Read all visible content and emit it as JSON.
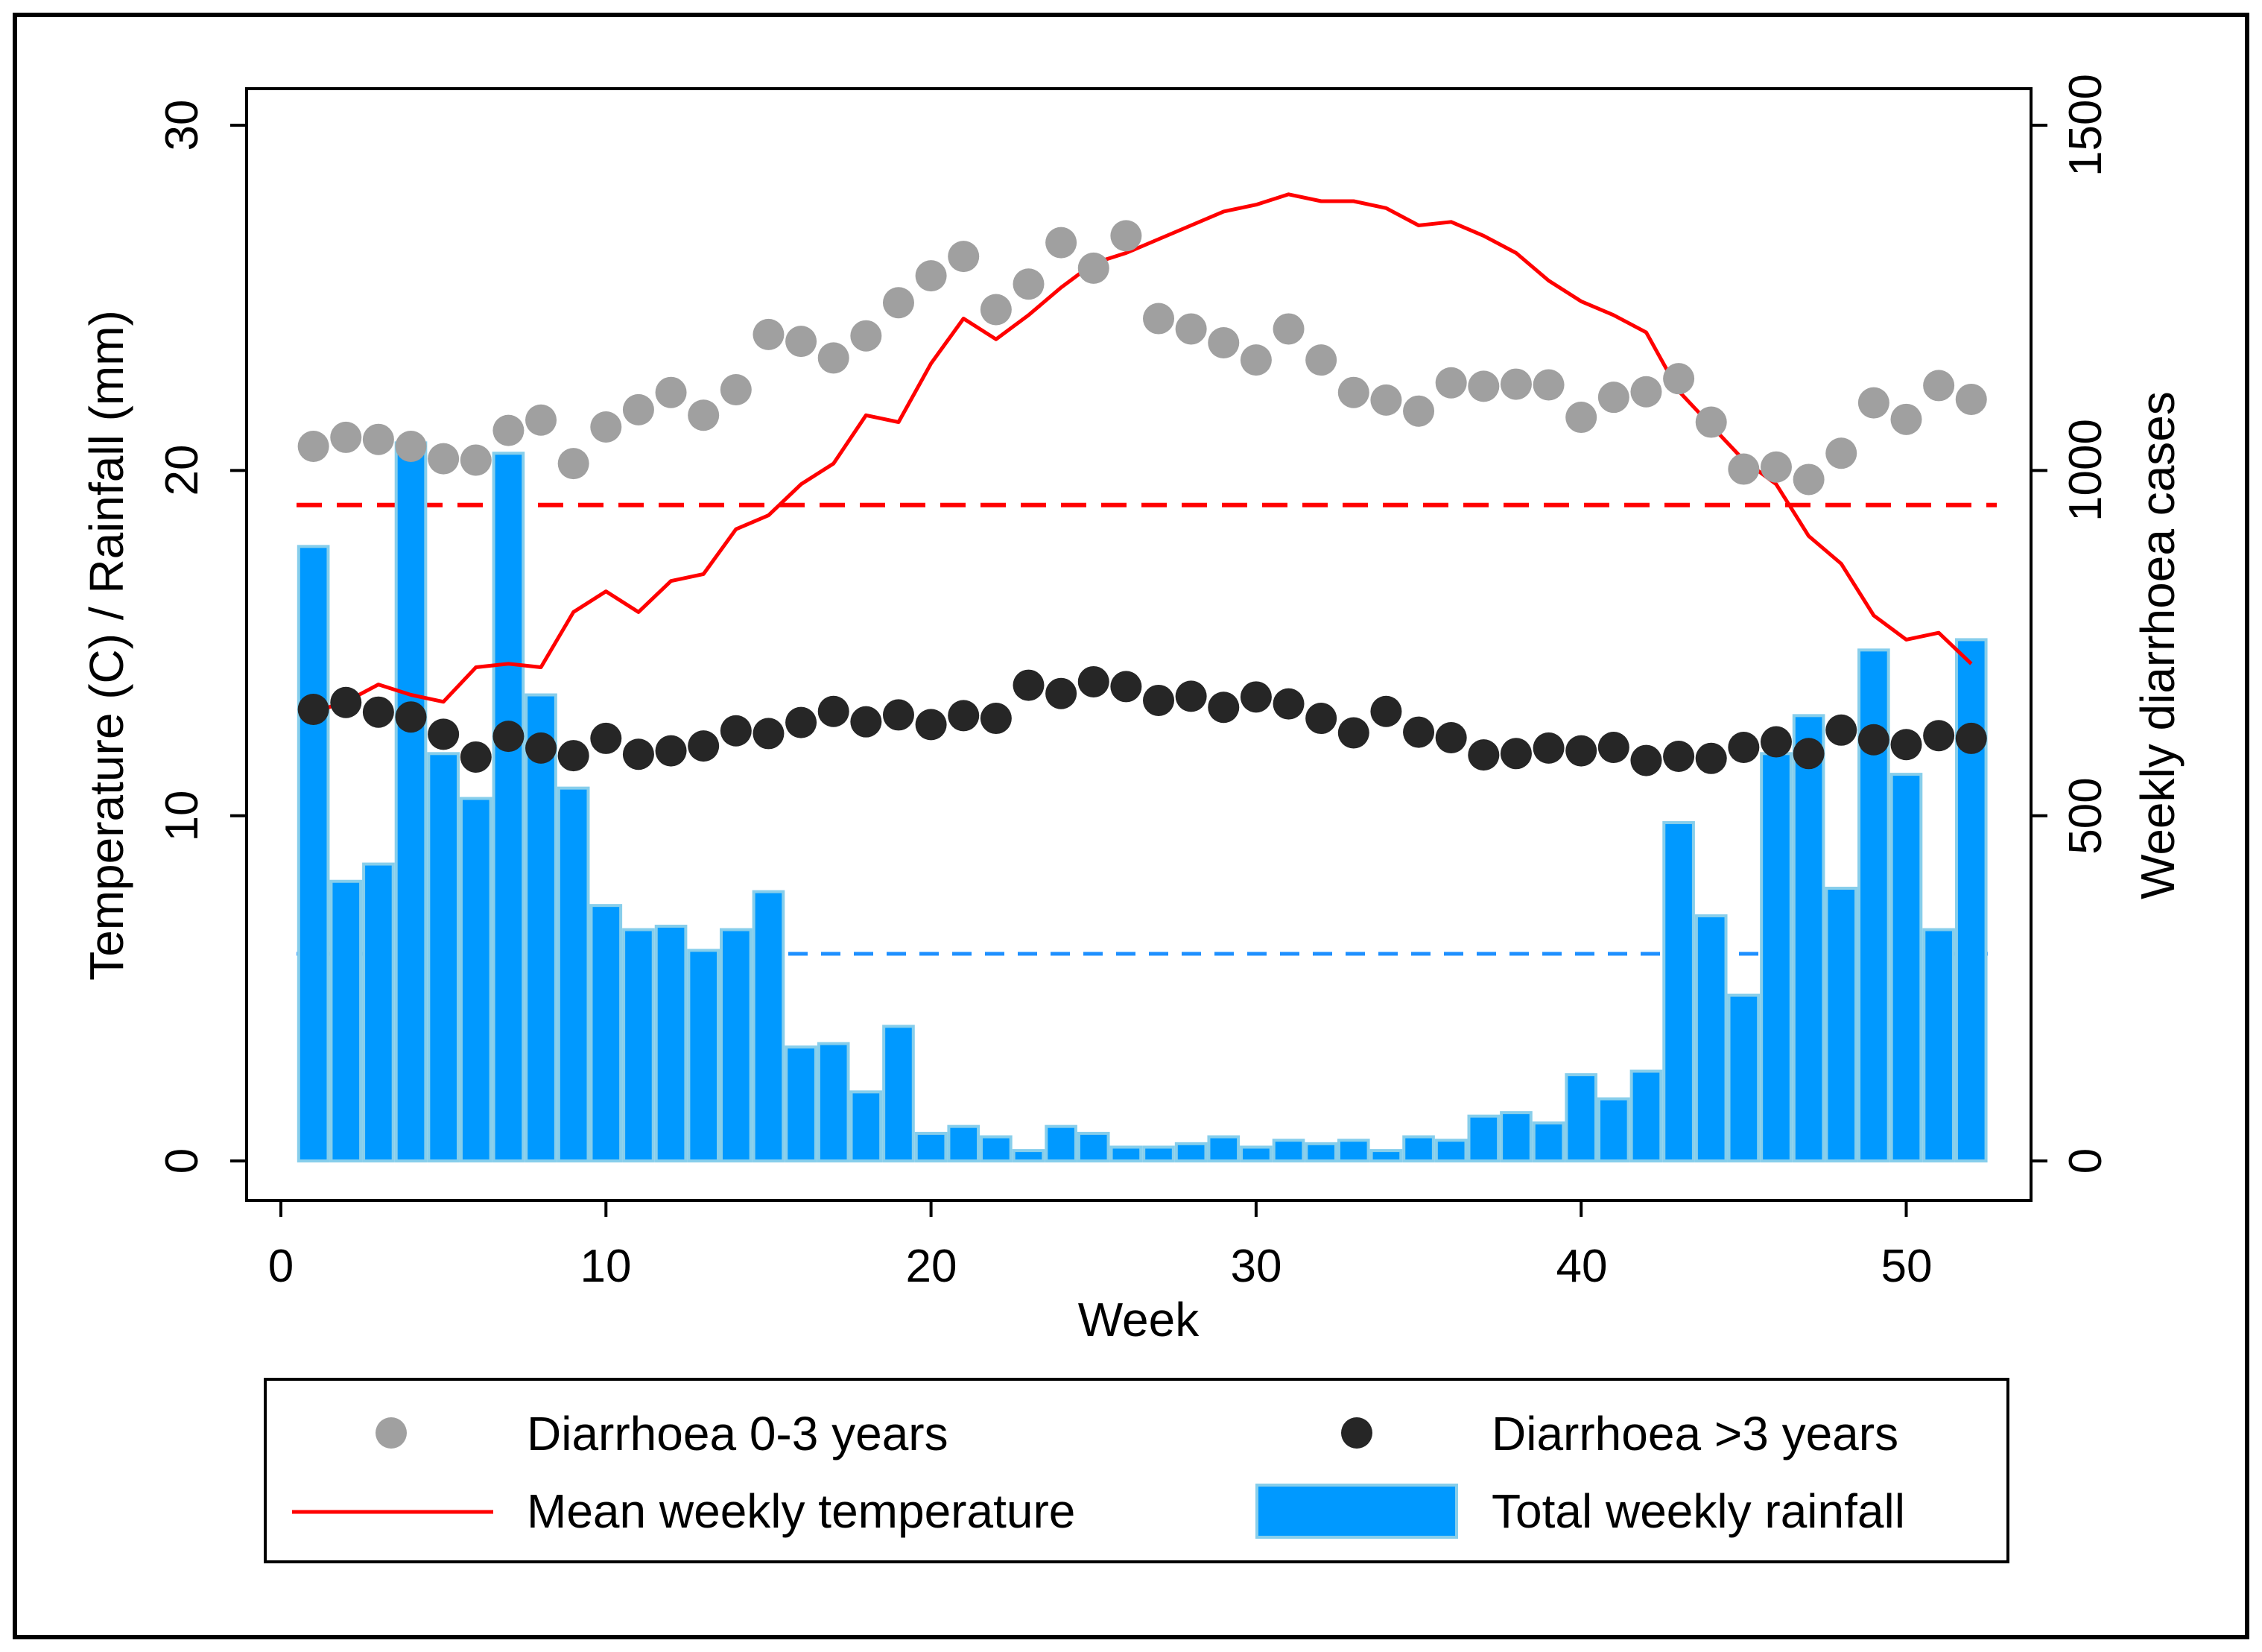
{
  "chart_data": {
    "type": "bar",
    "title": "",
    "xlabel": "Week",
    "ylabel": "Temperature (C) / Rainfall (mm)",
    "y2label": "Weekly diarrhoea cases",
    "xlim": [
      0,
      52
    ],
    "ylim": [
      0,
      30
    ],
    "y2lim": [
      0,
      1500
    ],
    "xticks": [
      "0",
      "10",
      "20",
      "30",
      "40",
      "50"
    ],
    "yticks": [
      "0",
      "10",
      "20",
      "30"
    ],
    "y2ticks": [
      "0",
      "500",
      "1000",
      "1500"
    ],
    "grid": false,
    "legend_position": "bottom",
    "x": [
      1,
      2,
      3,
      4,
      5,
      6,
      7,
      8,
      9,
      10,
      11,
      12,
      13,
      14,
      15,
      16,
      17,
      18,
      19,
      20,
      21,
      22,
      23,
      24,
      25,
      26,
      27,
      28,
      29,
      30,
      31,
      32,
      33,
      34,
      35,
      36,
      37,
      38,
      39,
      40,
      41,
      42,
      43,
      44,
      45,
      46,
      47,
      48,
      49,
      50,
      51,
      52
    ],
    "series": [
      {
        "name": "Total weekly rainfall",
        "kind": "bar",
        "axis": "left",
        "color": "#0099ff",
        "edge_color": "#87ceeb",
        "values": [
          17.8,
          8.1,
          8.6,
          20.8,
          11.8,
          10.5,
          20.5,
          13.5,
          10.8,
          7.4,
          6.7,
          6.8,
          6.1,
          6.7,
          7.8,
          3.3,
          3.4,
          2.0,
          3.9,
          0.8,
          1.0,
          0.7,
          0.3,
          1.0,
          0.8,
          0.4,
          0.4,
          0.5,
          0.7,
          0.4,
          0.6,
          0.5,
          0.6,
          0.3,
          0.7,
          0.6,
          1.3,
          1.4,
          1.1,
          2.5,
          1.8,
          2.6,
          9.8,
          7.1,
          4.8,
          11.8,
          12.9,
          7.9,
          14.8,
          11.2,
          6.7,
          15.1
        ]
      },
      {
        "name": "Mean weekly temperature",
        "kind": "line",
        "axis": "left",
        "color": "#ff0000",
        "values": [
          13.0,
          13.3,
          13.8,
          13.5,
          13.3,
          14.3,
          14.4,
          14.3,
          15.9,
          16.5,
          15.9,
          16.8,
          17.0,
          18.3,
          18.7,
          19.6,
          20.2,
          21.6,
          21.4,
          23.1,
          24.4,
          23.8,
          24.5,
          25.3,
          26.0,
          26.3,
          26.7,
          27.1,
          27.5,
          27.7,
          28.0,
          27.8,
          27.8,
          27.6,
          27.1,
          27.2,
          26.8,
          26.3,
          25.5,
          24.9,
          24.5,
          24.0,
          22.3,
          21.3,
          20.3,
          19.6,
          18.1,
          17.3,
          15.8,
          15.1,
          15.3,
          14.4
        ]
      },
      {
        "name": "Diarrhoea 0-3 years",
        "kind": "scatter",
        "axis": "right",
        "color": "#a0a0a0",
        "values": [
          1035,
          1048,
          1045,
          1035,
          1017,
          1015,
          1058,
          1073,
          1010,
          1063,
          1088,
          1113,
          1080,
          1117,
          1197,
          1187,
          1163,
          1195,
          1243,
          1282,
          1310,
          1233,
          1270,
          1330,
          1293,
          1340,
          1220,
          1205,
          1185,
          1160,
          1205,
          1160,
          1113,
          1102,
          1086,
          1127,
          1122,
          1125,
          1124,
          1077,
          1106,
          1114,
          1133,
          1070,
          1002,
          1005,
          987,
          1025,
          1098,
          1074,
          1123,
          1103
        ]
      },
      {
        "name": "Diarrhoea >3 years",
        "kind": "scatter",
        "axis": "right",
        "color": "#262626",
        "values": [
          654,
          664,
          650,
          643,
          618,
          585,
          615,
          598,
          587,
          612,
          589,
          594,
          601,
          623,
          619,
          635,
          651,
          636,
          646,
          632,
          645,
          641,
          689,
          677,
          694,
          687,
          667,
          673,
          657,
          672,
          662,
          641,
          620,
          651,
          621,
          613,
          588,
          590,
          598,
          594,
          599,
          580,
          586,
          583,
          599,
          607,
          590,
          624,
          610,
          603,
          616,
          612
        ]
      }
    ],
    "reference_lines": [
      {
        "axis": "left",
        "value": 19.0,
        "color": "#ff0000",
        "style": "dashed"
      },
      {
        "axis": "left",
        "value": 6.0,
        "color": "#1e90ff",
        "style": "dashed"
      }
    ]
  },
  "legend": {
    "items": [
      {
        "label": "Diarrhoea 0-3 years",
        "swatch": "gray-marker"
      },
      {
        "label": "Diarrhoea >3 years",
        "swatch": "dark-marker"
      },
      {
        "label": "Mean weekly temperature",
        "swatch": "red-line"
      },
      {
        "label": "Total weekly rainfall",
        "swatch": "blue-bar"
      }
    ]
  }
}
